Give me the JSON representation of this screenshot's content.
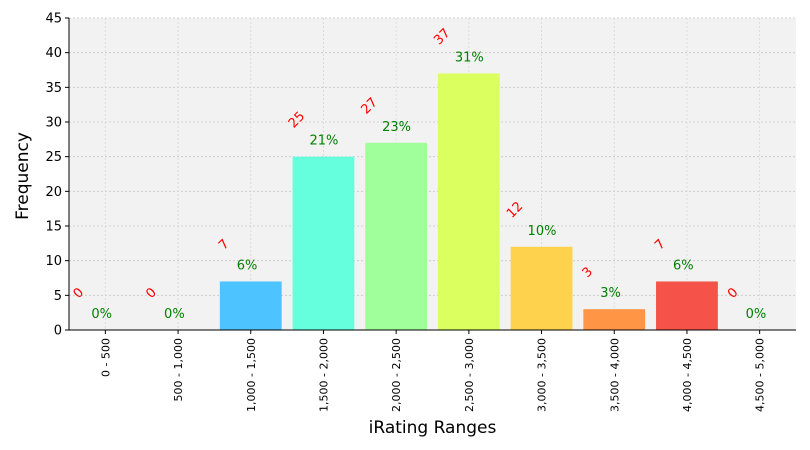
{
  "chart_data": {
    "type": "bar",
    "title": "",
    "xlabel": "iRating Ranges",
    "ylabel": "Frequency",
    "ylim": [
      0,
      45
    ],
    "yticks": [
      0,
      5,
      10,
      15,
      20,
      25,
      30,
      35,
      40,
      45
    ],
    "grid": true,
    "legend": "none",
    "count_label_color": "#ff0000",
    "percent_label_color": "#008000",
    "plot_background": "#f2f2f2",
    "categories": [
      "0 - 500",
      "500 - 1,000",
      "1,000 - 1,500",
      "1,500 - 2,000",
      "2,000 - 2,500",
      "2,500 - 3,000",
      "3,000 - 3,500",
      "3,500 - 4,000",
      "4,000 - 4,500",
      "4,500 - 5,000"
    ],
    "values": [
      0,
      0,
      7,
      25,
      27,
      37,
      12,
      3,
      7,
      0
    ],
    "count_labels": [
      "0",
      "0",
      "7",
      "25",
      "27",
      "37",
      "12",
      "3",
      "7",
      "0"
    ],
    "percent_labels": [
      "0%",
      "0%",
      "6%",
      "21%",
      "23%",
      "31%",
      "10%",
      "3%",
      "6%",
      "0%"
    ],
    "colors": [
      "#4dc4ff",
      "#4dc4ff",
      "#4dc4ff",
      "#66ffdd",
      "#a0ff9a",
      "#daff5e",
      "#ffd24d",
      "#ff9545",
      "#f5524a",
      "#f5524a"
    ]
  }
}
